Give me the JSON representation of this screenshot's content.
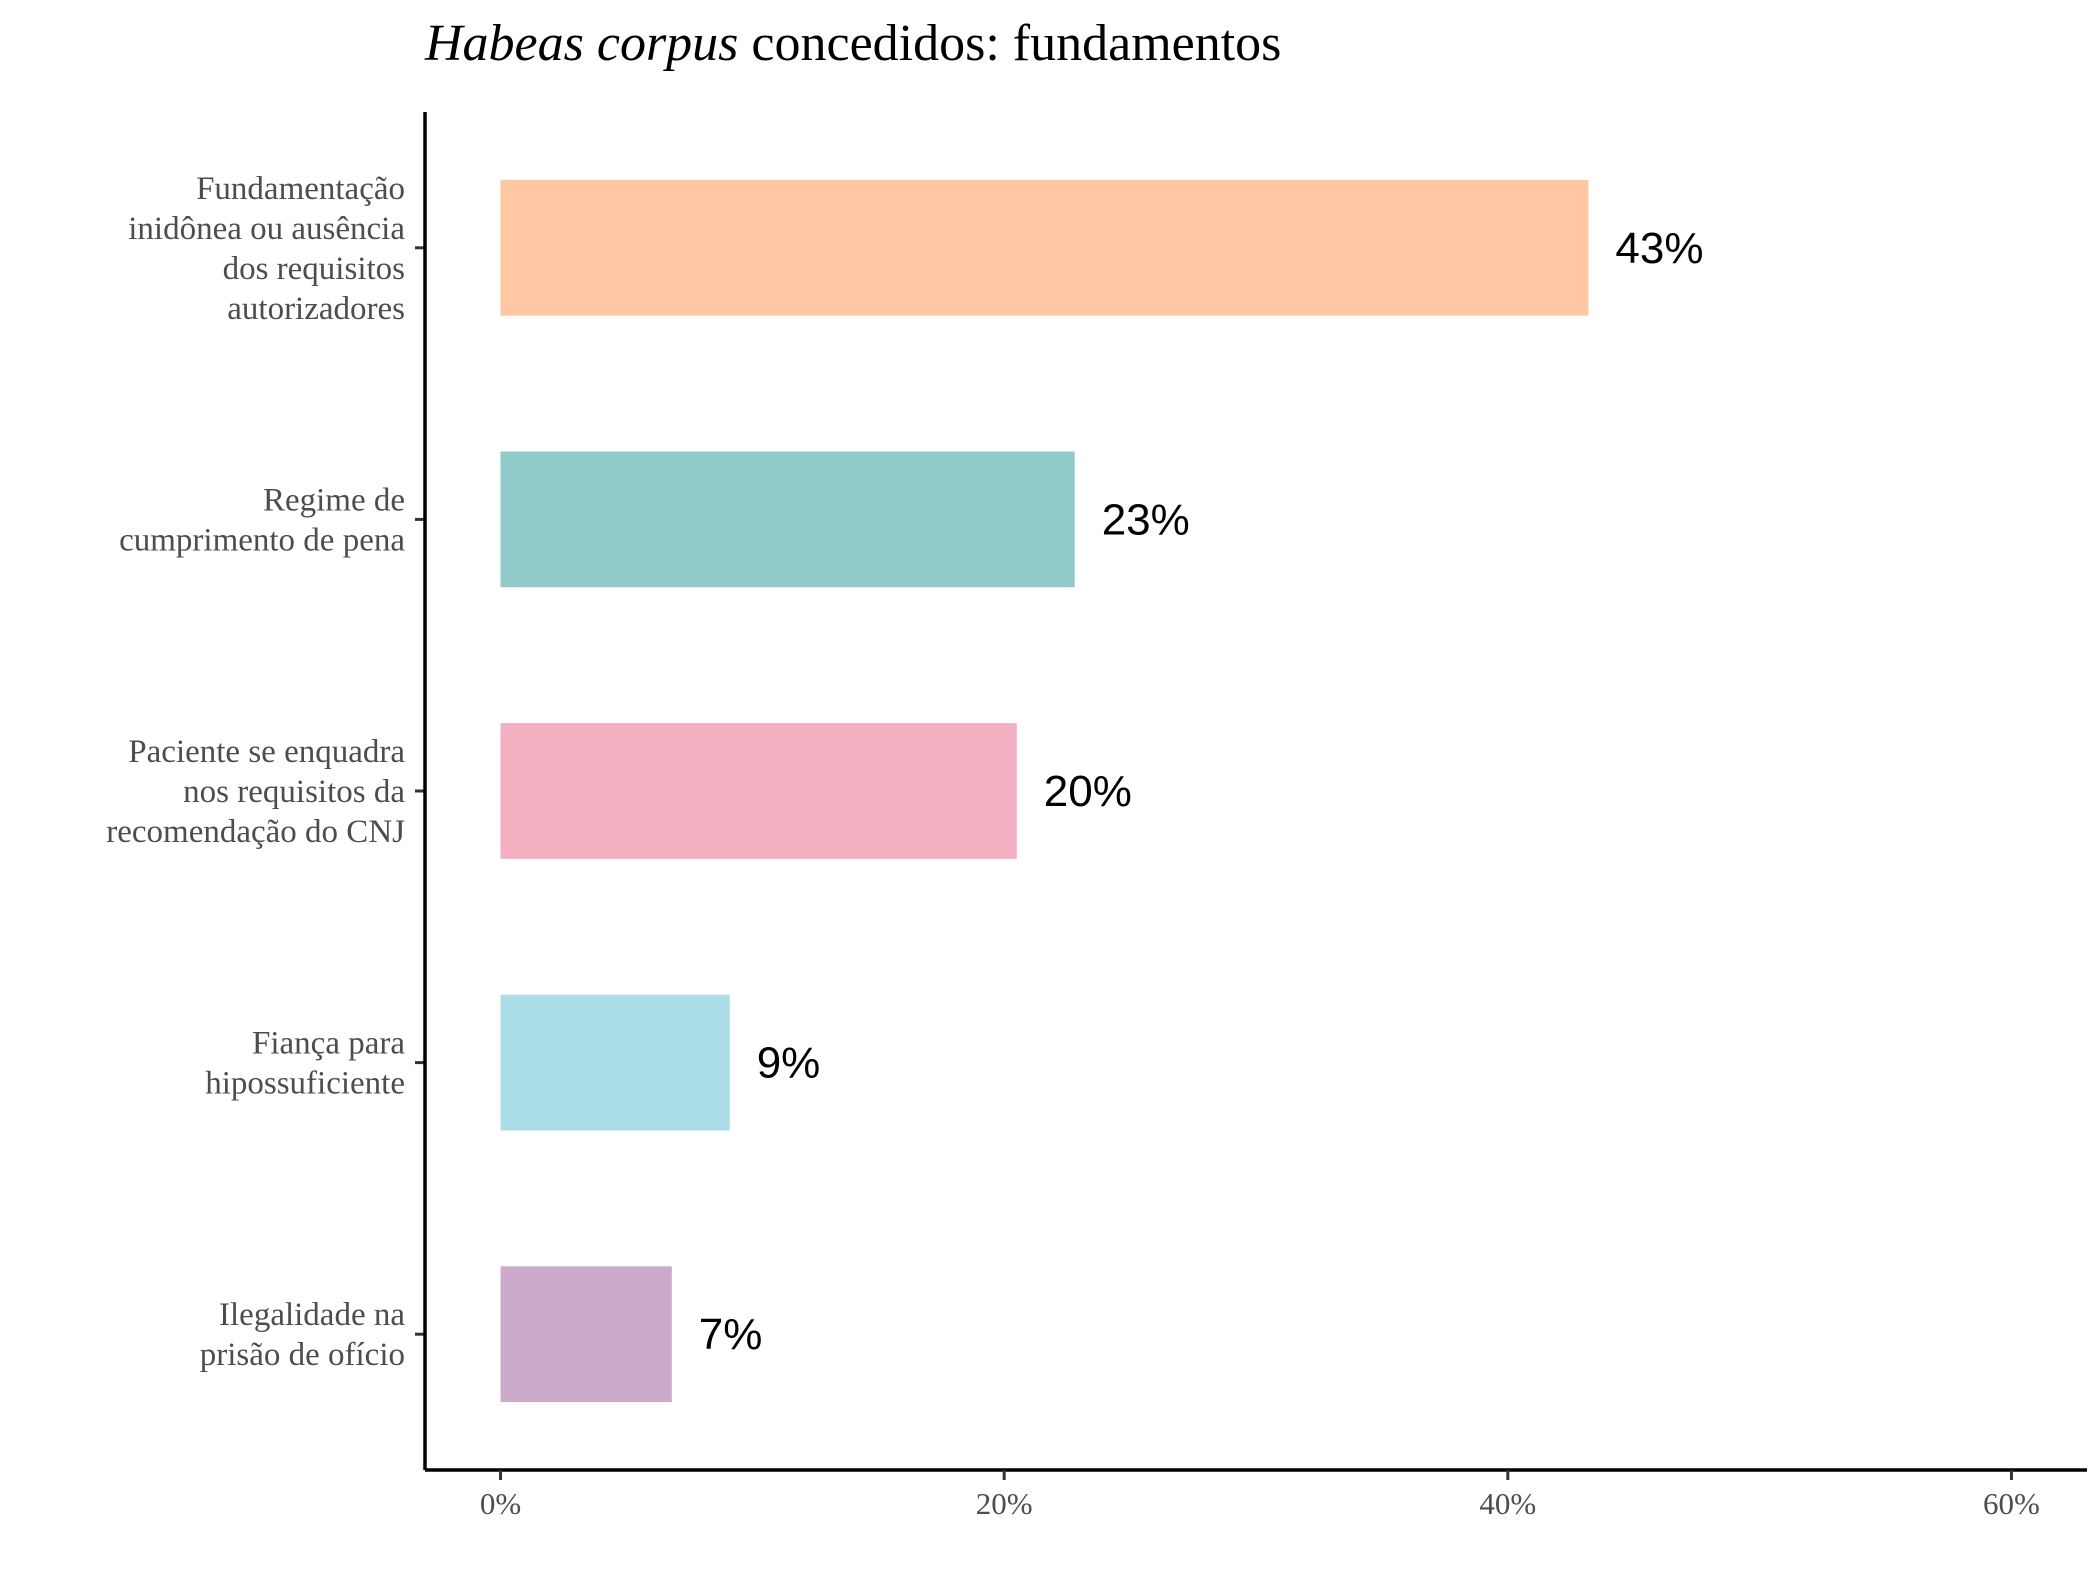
{
  "chart_data": {
    "type": "bar",
    "orientation": "horizontal",
    "title": {
      "italic": "Habeas corpus",
      "rest": " concedidos: fundamentos"
    },
    "categories": [
      [
        "Fundamentação",
        "inidônea ou ausência",
        "dos requisitos",
        "autorizadores"
      ],
      [
        "Regime de",
        "cumprimento de pena"
      ],
      [
        "Paciente se enquadra",
        "nos requisitos da",
        "recomendação do CNJ"
      ],
      [
        "Fiança para",
        "hipossuficiente"
      ],
      [
        "Ilegalidade na",
        "prisão de ofício"
      ]
    ],
    "values": [
      43.2,
      22.8,
      20.5,
      9.1,
      6.8
    ],
    "data_labels": [
      "43%",
      "23%",
      "20%",
      "9%",
      "7%"
    ],
    "colors": [
      "#FFC8A2",
      "#90CACA",
      "#F2B0C2",
      "#AADDE6",
      "#CCAACC"
    ],
    "xlim": [
      -3,
      63
    ],
    "x_ticks": [
      0,
      20,
      40,
      60
    ],
    "x_tick_labels": [
      "0%",
      "20%",
      "40%",
      "60%"
    ],
    "xlabel": "",
    "ylabel": "",
    "grid": false,
    "legend": "none"
  }
}
